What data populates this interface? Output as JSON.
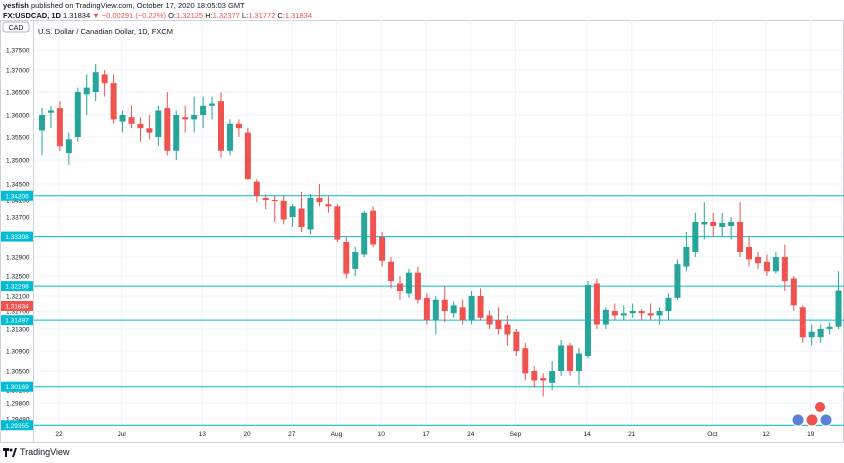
{
  "header": {
    "user": "yesfish",
    "published_line": "published on TradingView.com, October 17, 2020 18:05:03 GMT",
    "quote_prefix": "FX:USDCAD, 1D",
    "last": "1.31834",
    "change": "▼ −0.00291 (−0.22%)",
    "o_label": "O:",
    "o": "1.32125",
    "h_label": "H:",
    "h": "1.32377",
    "l_label": "L:",
    "l": "1.31772",
    "c_label": "C:",
    "c": "1.31834"
  },
  "chart": {
    "currency_badge": "CAD",
    "title": "U.S. Dollar / Canadian Dollar, 1D, FXCM",
    "up_color": "#26a69a",
    "down_color": "#ef5350",
    "hline_color": "#00bcd4",
    "current_price_label": "1.31834",
    "date_labels": [
      {
        "text": "22",
        "i": 0
      },
      {
        "text": "Jul",
        "i": 7
      },
      {
        "text": "13",
        "i": 16
      },
      {
        "text": "20",
        "i": 21
      },
      {
        "text": "27",
        "i": 26
      },
      {
        "text": "Aug",
        "i": 31
      },
      {
        "text": "10",
        "i": 36
      },
      {
        "text": "17",
        "i": 41
      },
      {
        "text": "24",
        "i": 46
      },
      {
        "text": "Sep",
        "i": 51
      },
      {
        "text": "14",
        "i": 59
      },
      {
        "text": "21",
        "i": 64
      },
      {
        "text": "Oct",
        "i": 73
      },
      {
        "text": "12",
        "i": 79
      },
      {
        "text": "19",
        "i": 84
      }
    ]
  },
  "chart_data": {
    "type": "candlestick",
    "title": "U.S. Dollar / Canadian Dollar, 1D, FXCM",
    "symbol": "FX:USDCAD",
    "y_axis_ticks": [
      1.375,
      1.37,
      1.365,
      1.36,
      1.355,
      1.35,
      1.345,
      1.341,
      1.337,
      1.333,
      1.329,
      1.325,
      1.321,
      1.317,
      1.313,
      1.309,
      1.305,
      1.301,
      1.298,
      1.2948
    ],
    "y_axis_tick_labels": [
      "1.37500",
      "1.37000",
      "1.36500",
      "1.36000",
      "1.35500",
      "1.35000",
      "1.34500",
      "1.34100",
      "1.33700",
      "1.33300",
      "1.32900",
      "1.32500",
      "1.32100",
      "1.31700",
      "1.31300",
      "1.30900",
      "1.30500",
      "1.30100",
      "1.29800",
      "1.29480"
    ],
    "horizontal_levels": [
      {
        "value": 1.34206,
        "label": "1.34206"
      },
      {
        "value": 1.33308,
        "label": "1.33308"
      },
      {
        "value": 1.32298,
        "label": "1.32298"
      },
      {
        "value": 1.31497,
        "label": "1.31497"
      },
      {
        "value": 1.30169,
        "label": "1.30169"
      },
      {
        "value": 1.29355,
        "label": "1.29355"
      }
    ],
    "last_price": 1.31834,
    "candles": [
      {
        "o": 1.3565,
        "h": 1.3615,
        "l": 1.351,
        "c": 1.36
      },
      {
        "o": 1.3605,
        "h": 1.362,
        "l": 1.357,
        "c": 1.361
      },
      {
        "o": 1.3615,
        "h": 1.363,
        "l": 1.352,
        "c": 1.353
      },
      {
        "o": 1.3515,
        "h": 1.356,
        "l": 1.349,
        "c": 1.3545
      },
      {
        "o": 1.355,
        "h": 1.366,
        "l": 1.354,
        "c": 1.365
      },
      {
        "o": 1.3645,
        "h": 1.369,
        "l": 1.36,
        "c": 1.366
      },
      {
        "o": 1.365,
        "h": 1.3715,
        "l": 1.363,
        "c": 1.3695
      },
      {
        "o": 1.369,
        "h": 1.37,
        "l": 1.364,
        "c": 1.367
      },
      {
        "o": 1.367,
        "h": 1.369,
        "l": 1.358,
        "c": 1.359
      },
      {
        "o": 1.3585,
        "h": 1.361,
        "l": 1.356,
        "c": 1.36
      },
      {
        "o": 1.3595,
        "h": 1.362,
        "l": 1.357,
        "c": 1.358
      },
      {
        "o": 1.358,
        "h": 1.3595,
        "l": 1.354,
        "c": 1.357
      },
      {
        "o": 1.357,
        "h": 1.36,
        "l": 1.3545,
        "c": 1.356
      },
      {
        "o": 1.355,
        "h": 1.362,
        "l": 1.353,
        "c": 1.361
      },
      {
        "o": 1.3615,
        "h": 1.365,
        "l": 1.351,
        "c": 1.352
      },
      {
        "o": 1.352,
        "h": 1.361,
        "l": 1.35,
        "c": 1.36
      },
      {
        "o": 1.3595,
        "h": 1.362,
        "l": 1.356,
        "c": 1.359
      },
      {
        "o": 1.359,
        "h": 1.364,
        "l": 1.356,
        "c": 1.36
      },
      {
        "o": 1.36,
        "h": 1.364,
        "l": 1.357,
        "c": 1.362
      },
      {
        "o": 1.362,
        "h": 1.364,
        "l": 1.359,
        "c": 1.3625
      },
      {
        "o": 1.363,
        "h": 1.365,
        "l": 1.3505,
        "c": 1.352
      },
      {
        "o": 1.352,
        "h": 1.359,
        "l": 1.351,
        "c": 1.358
      },
      {
        "o": 1.358,
        "h": 1.359,
        "l": 1.355,
        "c": 1.357
      },
      {
        "o": 1.356,
        "h": 1.357,
        "l": 1.346,
        "c": 1.346
      },
      {
        "o": 1.3455,
        "h": 1.346,
        "l": 1.3405,
        "c": 1.342
      },
      {
        "o": 1.3415,
        "h": 1.3425,
        "l": 1.3388,
        "c": 1.341
      },
      {
        "o": 1.341,
        "h": 1.342,
        "l": 1.336,
        "c": 1.3408
      },
      {
        "o": 1.3408,
        "h": 1.342,
        "l": 1.3355,
        "c": 1.3365
      },
      {
        "o": 1.337,
        "h": 1.34,
        "l": 1.335,
        "c": 1.3395
      },
      {
        "o": 1.339,
        "h": 1.343,
        "l": 1.334,
        "c": 1.335
      },
      {
        "o": 1.3345,
        "h": 1.3425,
        "l": 1.3335,
        "c": 1.3415
      },
      {
        "o": 1.3415,
        "h": 1.345,
        "l": 1.3395,
        "c": 1.3405
      },
      {
        "o": 1.34,
        "h": 1.342,
        "l": 1.338,
        "c": 1.3395
      },
      {
        "o": 1.3395,
        "h": 1.34,
        "l": 1.332,
        "c": 1.3325
      },
      {
        "o": 1.332,
        "h": 1.333,
        "l": 1.3245,
        "c": 1.3255
      },
      {
        "o": 1.3265,
        "h": 1.331,
        "l": 1.325,
        "c": 1.33
      },
      {
        "o": 1.3295,
        "h": 1.3385,
        "l": 1.329,
        "c": 1.338
      },
      {
        "o": 1.3385,
        "h": 1.3395,
        "l": 1.331,
        "c": 1.3315
      },
      {
        "o": 1.333,
        "h": 1.334,
        "l": 1.327,
        "c": 1.3282
      },
      {
        "o": 1.328,
        "h": 1.329,
        "l": 1.3225,
        "c": 1.324
      },
      {
        "o": 1.3235,
        "h": 1.325,
        "l": 1.32,
        "c": 1.322
      },
      {
        "o": 1.3215,
        "h": 1.3265,
        "l": 1.3205,
        "c": 1.3257
      },
      {
        "o": 1.3257,
        "h": 1.327,
        "l": 1.319,
        "c": 1.32
      },
      {
        "o": 1.3205,
        "h": 1.3215,
        "l": 1.314,
        "c": 1.315
      },
      {
        "o": 1.315,
        "h": 1.321,
        "l": 1.312,
        "c": 1.32
      },
      {
        "o": 1.32,
        "h": 1.323,
        "l": 1.3145,
        "c": 1.317
      },
      {
        "o": 1.3165,
        "h": 1.3195,
        "l": 1.3155,
        "c": 1.3185
      },
      {
        "o": 1.318,
        "h": 1.32,
        "l": 1.314,
        "c": 1.315
      },
      {
        "o": 1.315,
        "h": 1.322,
        "l": 1.314,
        "c": 1.321
      },
      {
        "o": 1.321,
        "h": 1.3225,
        "l": 1.315,
        "c": 1.3155
      },
      {
        "o": 1.316,
        "h": 1.317,
        "l": 1.313,
        "c": 1.314
      },
      {
        "o": 1.315,
        "h": 1.318,
        "l": 1.312,
        "c": 1.313
      },
      {
        "o": 1.314,
        "h": 1.316,
        "l": 1.31,
        "c": 1.312
      },
      {
        "o": 1.3125,
        "h": 1.313,
        "l": 1.308,
        "c": 1.309
      },
      {
        "o": 1.3095,
        "h": 1.3105,
        "l": 1.303,
        "c": 1.3045
      },
      {
        "o": 1.305,
        "h": 1.306,
        "l": 1.3015,
        "c": 1.303
      },
      {
        "o": 1.3035,
        "h": 1.3045,
        "l": 1.2995,
        "c": 1.303
      },
      {
        "o": 1.3025,
        "h": 1.307,
        "l": 1.301,
        "c": 1.305
      },
      {
        "o": 1.305,
        "h": 1.311,
        "l": 1.304,
        "c": 1.31
      },
      {
        "o": 1.31,
        "h": 1.3105,
        "l": 1.304,
        "c": 1.305
      },
      {
        "o": 1.305,
        "h": 1.3095,
        "l": 1.302,
        "c": 1.3085
      },
      {
        "o": 1.308,
        "h": 1.324,
        "l": 1.3075,
        "c": 1.3232
      },
      {
        "o": 1.3235,
        "h": 1.3245,
        "l": 1.313,
        "c": 1.314
      },
      {
        "o": 1.314,
        "h": 1.318,
        "l": 1.313,
        "c": 1.3173
      },
      {
        "o": 1.317,
        "h": 1.319,
        "l": 1.315,
        "c": 1.316
      },
      {
        "o": 1.316,
        "h": 1.3185,
        "l": 1.315,
        "c": 1.3165
      },
      {
        "o": 1.3165,
        "h": 1.319,
        "l": 1.3155,
        "c": 1.317
      },
      {
        "o": 1.317,
        "h": 1.3175,
        "l": 1.315,
        "c": 1.3165
      },
      {
        "o": 1.3165,
        "h": 1.319,
        "l": 1.315,
        "c": 1.316
      },
      {
        "o": 1.316,
        "h": 1.318,
        "l": 1.314,
        "c": 1.317
      },
      {
        "o": 1.317,
        "h": 1.3215,
        "l": 1.315,
        "c": 1.3205
      },
      {
        "o": 1.3205,
        "h": 1.3285,
        "l": 1.32,
        "c": 1.3275
      },
      {
        "o": 1.327,
        "h": 1.334,
        "l": 1.326,
        "c": 1.331
      },
      {
        "o": 1.33,
        "h": 1.338,
        "l": 1.329,
        "c": 1.336
      },
      {
        "o": 1.3355,
        "h": 1.3405,
        "l": 1.3325,
        "c": 1.336
      },
      {
        "o": 1.336,
        "h": 1.338,
        "l": 1.333,
        "c": 1.3352
      },
      {
        "o": 1.335,
        "h": 1.338,
        "l": 1.333,
        "c": 1.3358
      },
      {
        "o": 1.3352,
        "h": 1.337,
        "l": 1.3325,
        "c": 1.336
      },
      {
        "o": 1.336,
        "h": 1.3405,
        "l": 1.329,
        "c": 1.33
      },
      {
        "o": 1.331,
        "h": 1.333,
        "l": 1.327,
        "c": 1.3285
      },
      {
        "o": 1.329,
        "h": 1.33,
        "l": 1.3265,
        "c": 1.3277
      },
      {
        "o": 1.328,
        "h": 1.3295,
        "l": 1.325,
        "c": 1.326
      },
      {
        "o": 1.326,
        "h": 1.33,
        "l": 1.3255,
        "c": 1.329
      },
      {
        "o": 1.329,
        "h": 1.3315,
        "l": 1.322,
        "c": 1.324
      },
      {
        "o": 1.3245,
        "h": 1.325,
        "l": 1.317,
        "c": 1.3185
      },
      {
        "o": 1.318,
        "h": 1.3185,
        "l": 1.3105,
        "c": 1.3115
      },
      {
        "o": 1.3115,
        "h": 1.314,
        "l": 1.31,
        "c": 1.3125
      },
      {
        "o": 1.3115,
        "h": 1.314,
        "l": 1.3105,
        "c": 1.313
      },
      {
        "o": 1.313,
        "h": 1.3145,
        "l": 1.312,
        "c": 1.3135
      },
      {
        "o": 1.3135,
        "h": 1.326,
        "l": 1.313,
        "c": 1.3221
      },
      {
        "o": 1.3212,
        "h": 1.3238,
        "l": 1.3177,
        "c": 1.3183
      }
    ]
  },
  "footer": {
    "brand": "TradingView"
  }
}
